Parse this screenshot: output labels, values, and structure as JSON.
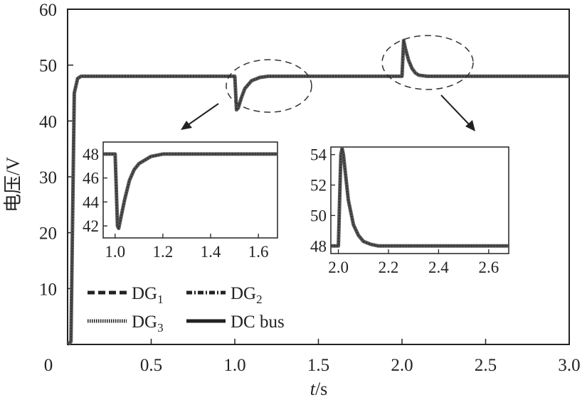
{
  "chart_data": {
    "type": "line",
    "title": "",
    "xlabel": "t/s",
    "ylabel": "电压/V",
    "xlim": [
      0,
      3.0
    ],
    "ylim": [
      0,
      60
    ],
    "xticks": [
      0,
      0.5,
      1.0,
      1.5,
      2.0,
      2.5,
      3.0
    ],
    "xtick_labels": [
      "0",
      "0.5",
      "1.0",
      "1.5",
      "2.0",
      "2.5",
      "3.0"
    ],
    "yticks": [
      10,
      20,
      30,
      40,
      50,
      60
    ],
    "ytick_labels": [
      "10",
      "20",
      "30",
      "40",
      "50",
      "60"
    ],
    "legend": [
      {
        "label": "DG",
        "sub": "1",
        "style": "dashed"
      },
      {
        "label": "DG",
        "sub": "2",
        "style": "dashdot"
      },
      {
        "label": "DG",
        "sub": "3",
        "style": "dotted"
      },
      {
        "label": "DC bus",
        "sub": "",
        "style": "solid"
      }
    ],
    "legend_position": "bottom-left",
    "series": [
      {
        "x": [
          0,
          0.02,
          0.04,
          0.06,
          0.08,
          0.1,
          0.2,
          0.5,
          0.99,
          1.0,
          1.005,
          1.01,
          1.02,
          1.04,
          1.06,
          1.1,
          1.15,
          1.2,
          1.3,
          1.5,
          1.99,
          2.0,
          2.01,
          2.02,
          2.04,
          2.06,
          2.08,
          2.1,
          2.15,
          2.2,
          2.3,
          2.5,
          2.7,
          3.0
        ],
        "y": [
          0,
          0.5,
          45,
          47.6,
          48,
          48,
          48,
          48,
          48,
          48,
          45,
          42,
          42.3,
          44.2,
          45.8,
          47.2,
          47.8,
          48,
          48,
          48,
          48,
          48,
          54.4,
          53,
          50.8,
          49.4,
          48.6,
          48.2,
          48,
          48,
          48,
          48,
          48,
          48
        ]
      }
    ],
    "insets": [
      {
        "xlim": [
          0.95,
          1.68
        ],
        "ylim": [
          41,
          49
        ],
        "xticks": [
          1.0,
          1.2,
          1.4,
          1.6
        ],
        "xtick_labels": [
          "1.0",
          "1.2",
          "1.4",
          "1.6"
        ],
        "yticks": [
          42,
          44,
          46,
          48
        ],
        "ytick_labels": [
          "42",
          "44",
          "46",
          "48"
        ],
        "x": [
          0.95,
          0.99,
          1.0,
          1.005,
          1.01,
          1.015,
          1.02,
          1.04,
          1.06,
          1.08,
          1.1,
          1.15,
          1.2,
          1.3,
          1.5,
          1.68
        ],
        "y": [
          48,
          48,
          48,
          45,
          42,
          41.8,
          42.3,
          44.2,
          45.8,
          46.7,
          47.2,
          47.8,
          48,
          48,
          48,
          48
        ]
      },
      {
        "xlim": [
          1.97,
          2.68
        ],
        "ylim": [
          47.5,
          54.5
        ],
        "xticks": [
          2.0,
          2.2,
          2.4,
          2.6
        ],
        "xtick_labels": [
          "2.0",
          "2.2",
          "2.4",
          "2.6"
        ],
        "yticks": [
          48,
          50,
          52,
          54
        ],
        "ytick_labels": [
          "48",
          "50",
          "52",
          "54"
        ],
        "x": [
          1.97,
          1.995,
          2.0,
          2.005,
          2.01,
          2.015,
          2.02,
          2.03,
          2.04,
          2.06,
          2.08,
          2.1,
          2.13,
          2.16,
          2.2,
          2.3,
          2.5,
          2.68
        ],
        "y": [
          48,
          48,
          48,
          51,
          54,
          54.4,
          54,
          52.5,
          51,
          49.4,
          48.7,
          48.3,
          48.1,
          48,
          48,
          48,
          48,
          48
        ]
      }
    ]
  }
}
